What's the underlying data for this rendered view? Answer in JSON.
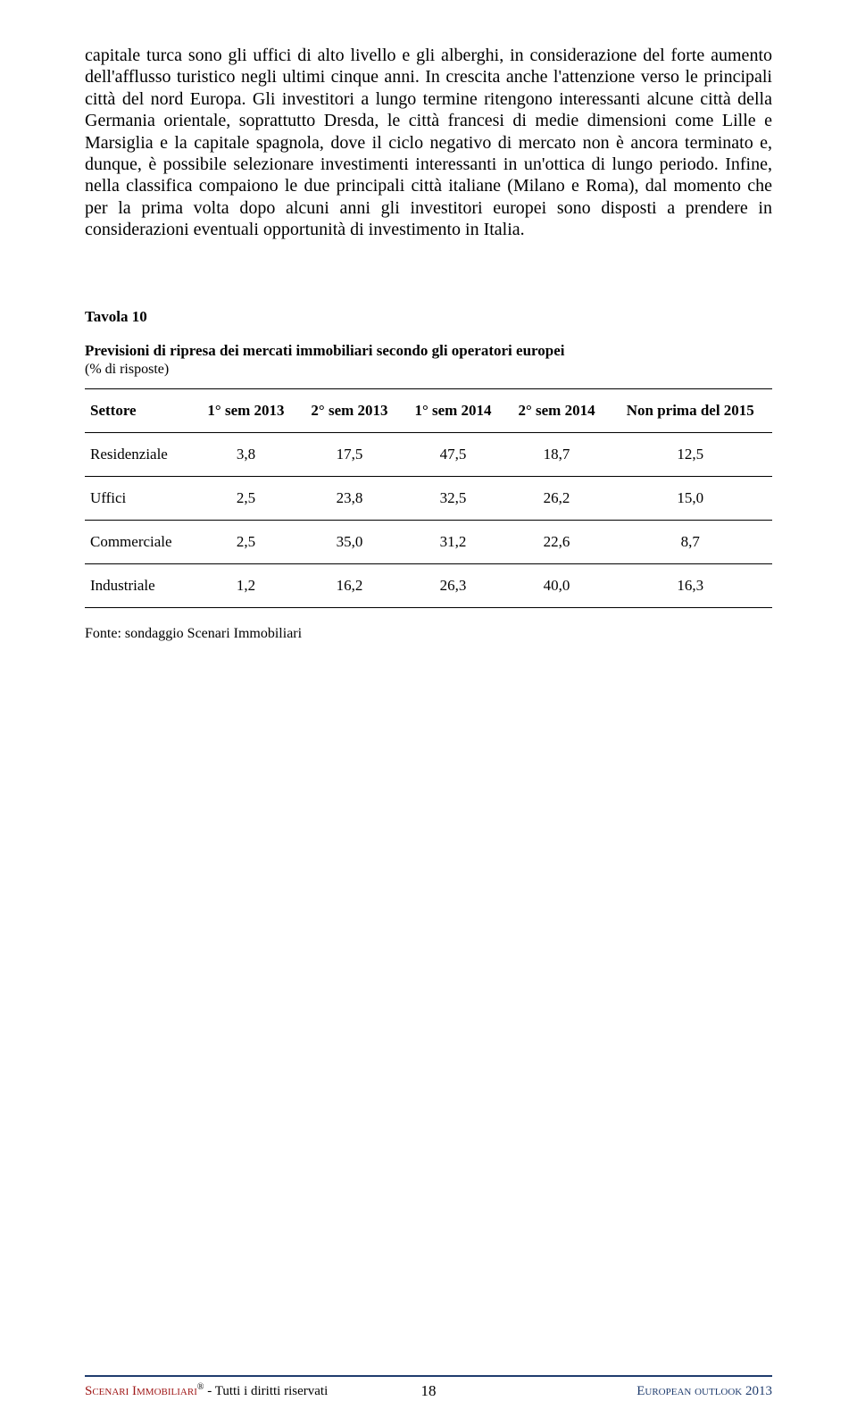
{
  "body_paragraph": "capitale turca sono gli uffici di alto livello e gli alberghi, in considerazione del forte aumento dell'afflusso turistico negli ultimi cinque anni. In crescita anche l'attenzione verso le principali città del nord Europa. Gli investitori a lungo termine ritengono interessanti alcune città della Germania orientale, soprattutto Dresda, le città francesi di medie dimensioni come Lille e Marsiglia e la capitale spagnola, dove il ciclo negativo di mercato non è ancora terminato e, dunque, è possibile selezionare investimenti interessanti in un'ottica di lungo periodo. Infine, nella classifica compaiono le due principali città italiane (Milano e Roma), dal momento che per la prima volta dopo alcuni anni gli investitori europei sono disposti a prendere in considerazioni eventuali opportunità di investimento in Italia.",
  "table": {
    "caption": "Tavola 10",
    "title": "Previsioni di ripresa dei mercati immobiliari secondo gli operatori europei",
    "subtitle": "(% di risposte)",
    "columns": [
      "Settore",
      "1° sem 2013",
      "2° sem 2013",
      "1° sem 2014",
      "2° sem 2014",
      "Non prima del 2015"
    ],
    "rows": [
      [
        "Residenziale",
        "3,8",
        "17,5",
        "47,5",
        "18,7",
        "12,5"
      ],
      [
        "Uffici",
        "2,5",
        "23,8",
        "32,5",
        "26,2",
        "15,0"
      ],
      [
        "Commerciale",
        "2,5",
        "35,0",
        "31,2",
        "22,6",
        "8,7"
      ],
      [
        "Industriale",
        "1,2",
        "16,2",
        "26,3",
        "40,0",
        "16,3"
      ]
    ],
    "source": "Fonte: sondaggio Scenari Immobiliari"
  },
  "footer": {
    "left_brand": "Scenari Immobiliari",
    "left_symbol": "®",
    "left_rest": " - Tutti i diritti riservati",
    "page_number": "18",
    "right_text": "European outlook 2013"
  },
  "colors": {
    "footer_line": "#1f3c6e",
    "footer_brand": "#a01818",
    "footer_right": "#1f3c6e"
  }
}
